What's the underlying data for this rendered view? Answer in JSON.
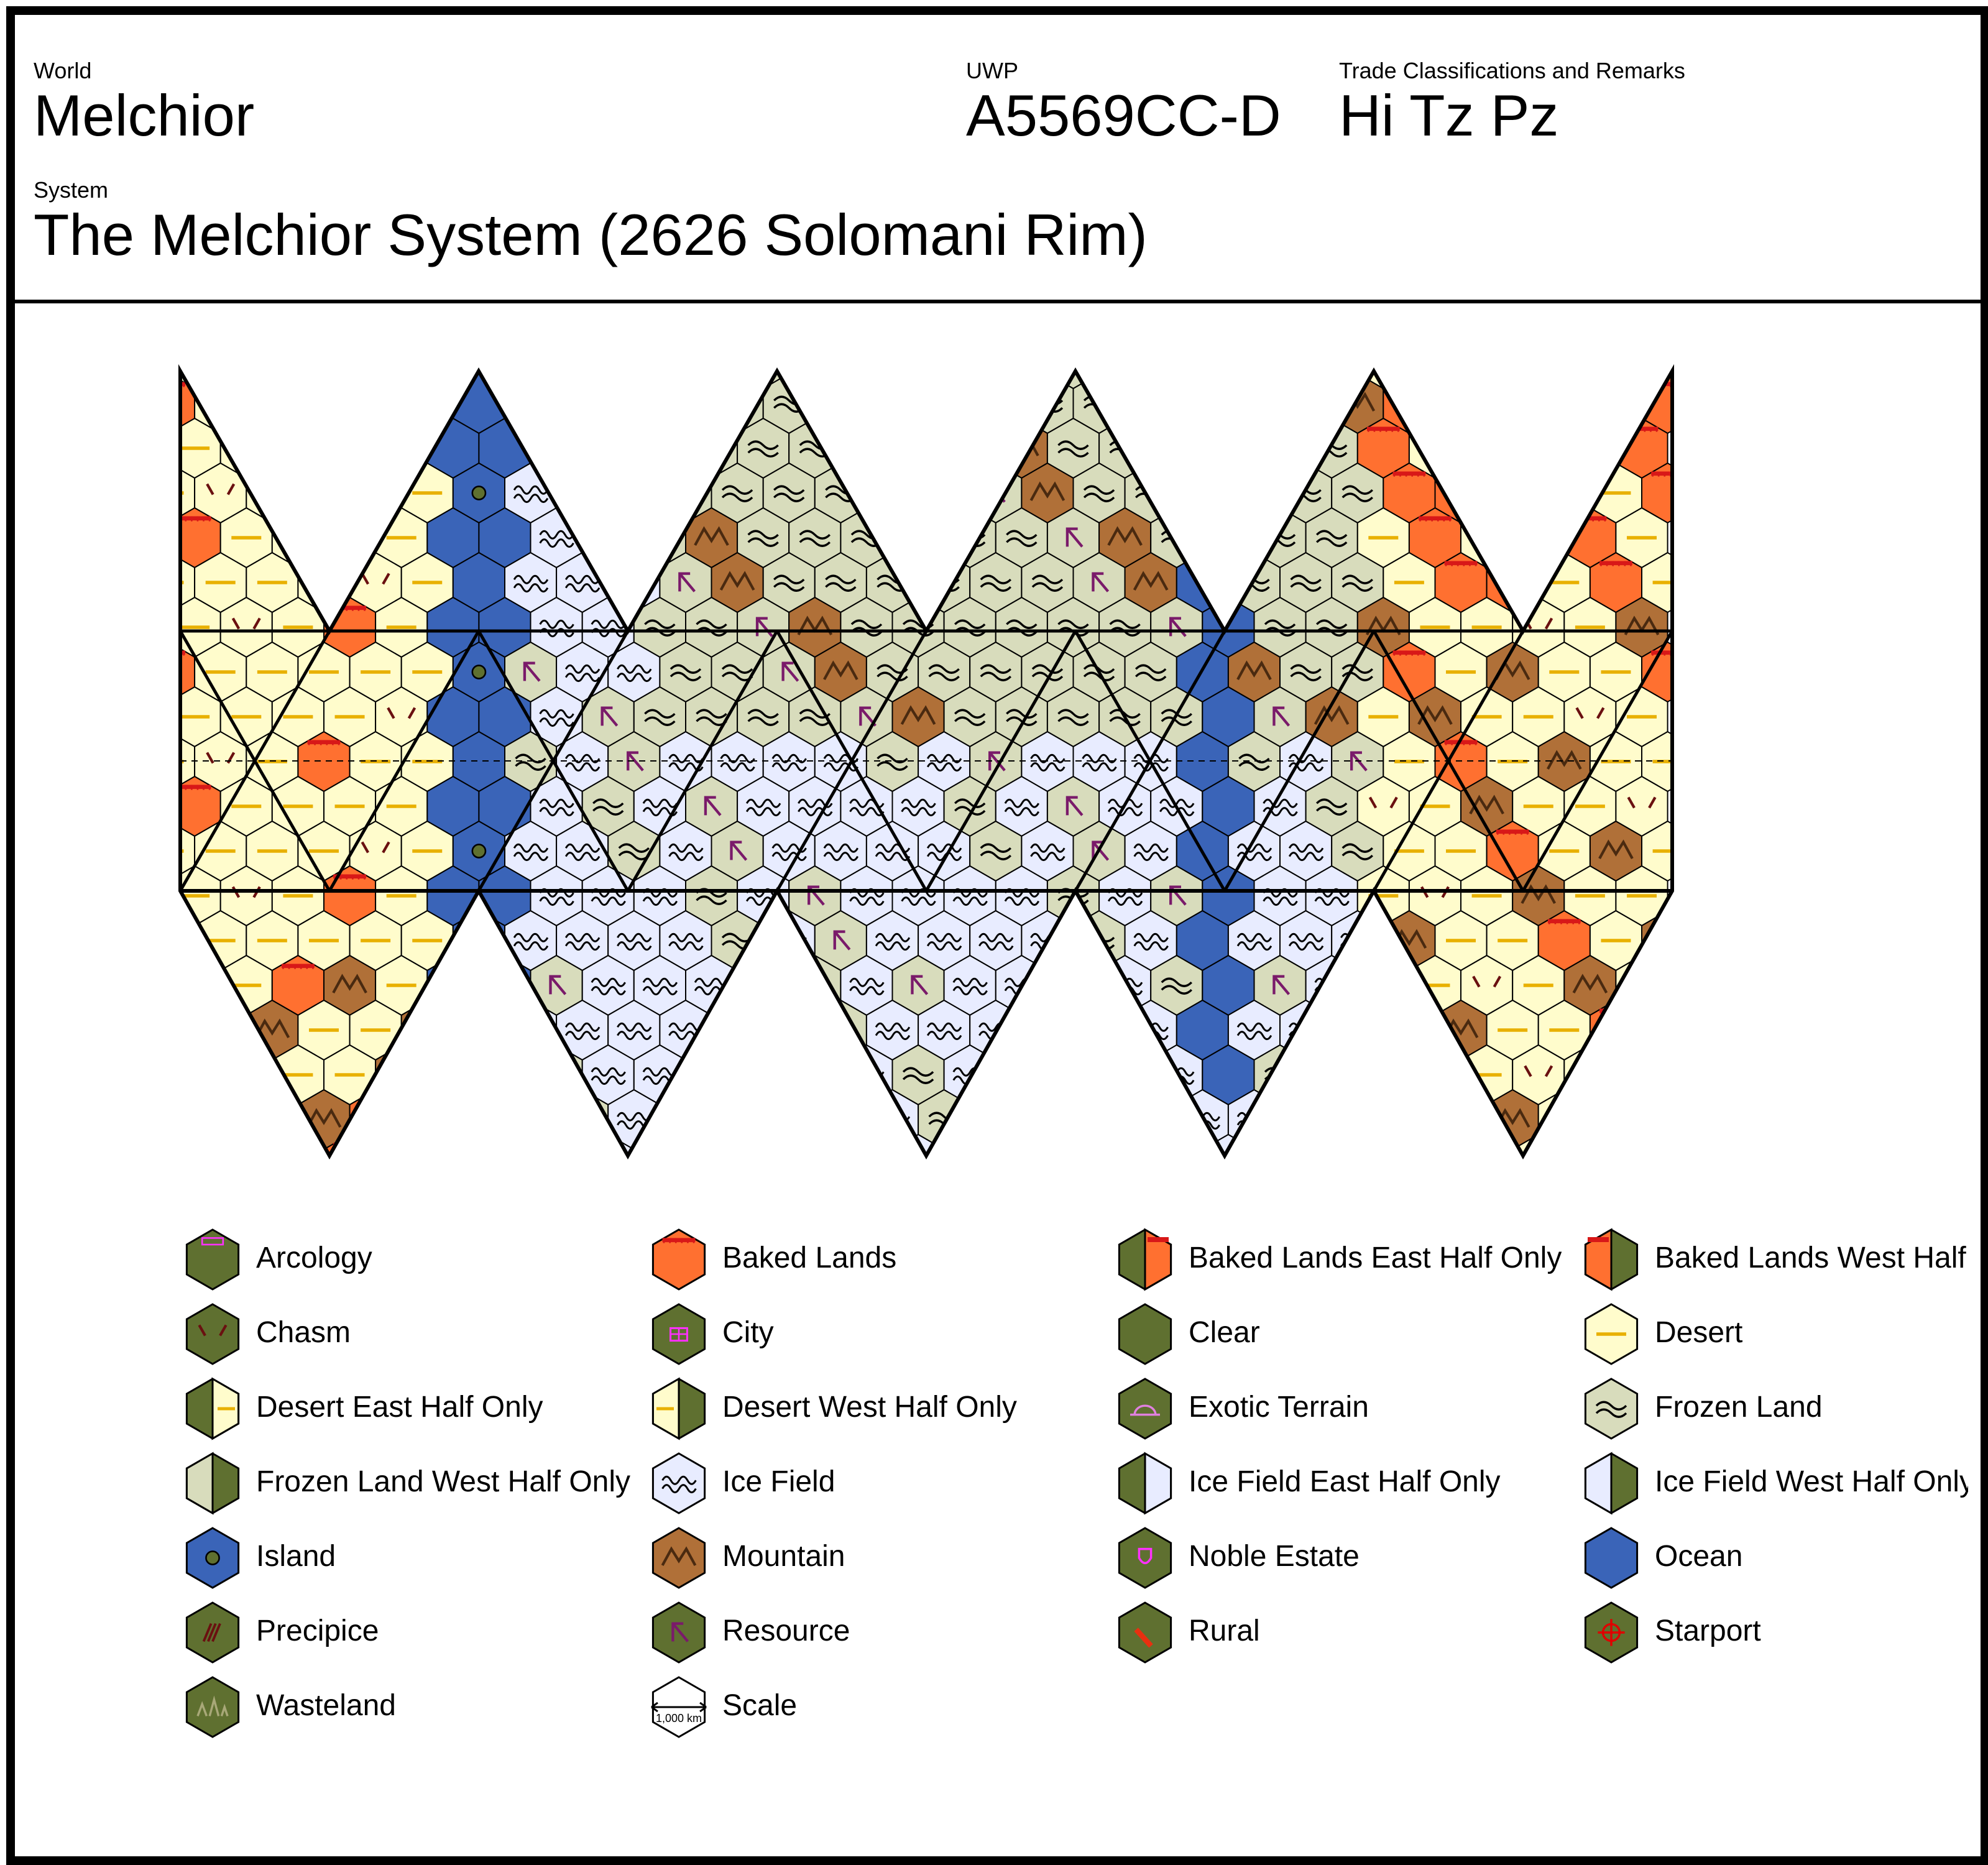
{
  "header": {
    "world_label": "World",
    "world_name": "Melchior",
    "uwp_label": "UWP",
    "uwp": "A5569CC-D",
    "trade_label": "Trade Classifications and Remarks",
    "trade_codes": "Hi Tz Pz",
    "system_label": "System",
    "system_name": "The Melchior System (2626 Solomani Rim)"
  },
  "colors": {
    "clear": "#5f7030",
    "desert": "#fffccc",
    "baked": "#ff7030",
    "frozen": "#d8dcbc",
    "ice": "#e8ecff",
    "mountain": "#b07038",
    "ocean": "#3a64b8",
    "chasm_mark": "#6a1010",
    "desert_mark": "#e8b000",
    "city_mark": "#ff30ff",
    "resource_mark": "#7a1a6a",
    "starport_mark": "#e00000",
    "exotic_mark": "#e080e0",
    "waste_mark": "#a8a878"
  },
  "legend": [
    {
      "label": "Arcology",
      "icon": "arcology"
    },
    {
      "label": "Baked Lands",
      "icon": "baked-lands"
    },
    {
      "label": "Baked Lands East Half Only",
      "icon": "baked-lands-east"
    },
    {
      "label": "Baked Lands West Half Only",
      "icon": "baked-lands-west"
    },
    {
      "label": "Chasm",
      "icon": "chasm"
    },
    {
      "label": "City",
      "icon": "city"
    },
    {
      "label": "Clear",
      "icon": "clear"
    },
    {
      "label": "Desert",
      "icon": "desert"
    },
    {
      "label": "Desert East Half Only",
      "icon": "desert-east"
    },
    {
      "label": "Desert West Half Only",
      "icon": "desert-west"
    },
    {
      "label": "Exotic Terrain",
      "icon": "exotic"
    },
    {
      "label": "Frozen Land",
      "icon": "frozen"
    },
    {
      "label": "Frozen Land West Half Only",
      "icon": "frozen-west"
    },
    {
      "label": "Ice Field",
      "icon": "ice"
    },
    {
      "label": "Ice Field East Half Only",
      "icon": "ice-east"
    },
    {
      "label": "Ice Field West Half Only",
      "icon": "ice-west"
    },
    {
      "label": "Island",
      "icon": "island"
    },
    {
      "label": "Mountain",
      "icon": "mountain"
    },
    {
      "label": "Noble Estate",
      "icon": "noble-estate"
    },
    {
      "label": "Ocean",
      "icon": "ocean"
    },
    {
      "label": "Precipice",
      "icon": "precipice"
    },
    {
      "label": "Resource",
      "icon": "resource"
    },
    {
      "label": "Rural",
      "icon": "rural"
    },
    {
      "label": "Starport",
      "icon": "starport"
    },
    {
      "label": "Wasteland",
      "icon": "wasteland"
    },
    {
      "label": "Scale",
      "icon": "scale",
      "scale_text": "1,000 km"
    }
  ]
}
